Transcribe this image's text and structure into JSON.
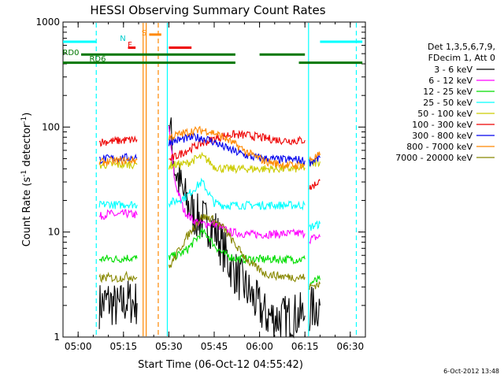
{
  "chart_data": {
    "type": "line",
    "title": "HESSI Observing Summary Count Rates",
    "xlabel": "Start Time (06-Oct-12 04:55:42)",
    "ylabel_main": "Count Rate (s",
    "ylabel_sup1": "-1",
    "ylabel_mid": " detector",
    "ylabel_sup2": "-1",
    "ylabel_end": ")",
    "footer": "6-Oct-2012 13:48",
    "y_scale": "log",
    "ylim": [
      1,
      1000
    ],
    "xlim_minutes": [
      55,
      155
    ],
    "x_ticks": [
      {
        "m": 60,
        "label": "05:00"
      },
      {
        "m": 75,
        "label": "05:15"
      },
      {
        "m": 90,
        "label": "05:30"
      },
      {
        "m": 105,
        "label": "05:45"
      },
      {
        "m": 120,
        "label": "06:00"
      },
      {
        "m": 135,
        "label": "06:15"
      },
      {
        "m": 150,
        "label": "06:30"
      }
    ],
    "y_ticks": [
      {
        "v": 1,
        "label": "1"
      },
      {
        "v": 10,
        "label": "10"
      },
      {
        "v": 100,
        "label": "100"
      },
      {
        "v": 1000,
        "label": "1000"
      }
    ],
    "legend_title_1": "Det 1,3,5,6,7,9,",
    "legend_title_2": "FDecim 1, Att 0",
    "legend_position": "right",
    "x_note": "x values are minutes after 04:00 UT",
    "series": [
      {
        "name": "3 - 6 keV",
        "color": "#000000",
        "segments": [
          {
            "x": [
              67,
              70,
              73,
              76,
              79.5
            ],
            "y": [
              2.0,
              2.2,
              1.9,
              2.2,
              2.1
            ]
          },
          {
            "x": [
              90,
              92,
              95,
              98,
              101,
              105,
              110,
              117,
              122,
              127,
              132,
              135
            ],
            "y": [
              120,
              40,
              22,
              15,
              13,
              11,
              5,
              2.5,
              1.6,
              1.5,
              1.6,
              1.6
            ]
          },
          {
            "x": [
              136.5,
              138,
              140
            ],
            "y": [
              1.8,
              1.9,
              2.0
            ]
          }
        ]
      },
      {
        "name": "6 - 12 keV",
        "color": "#ff00ff",
        "segments": [
          {
            "x": [
              67,
              70,
              73,
              76,
              79.5
            ],
            "y": [
              14,
              15,
              14.5,
              15,
              14.5
            ]
          },
          {
            "x": [
              90,
              92,
              95,
              98,
              101,
              105,
              110,
              117,
              122,
              127,
              132,
              135
            ],
            "y": [
              100,
              30,
              16,
              13,
              12,
              12,
              10,
              9.5,
              9.5,
              9.6,
              9.7,
              9.7
            ]
          },
          {
            "x": [
              136.5,
              138,
              140
            ],
            "y": [
              8.5,
              8.8,
              9.0
            ]
          }
        ]
      },
      {
        "name": "12 - 25 keV",
        "color": "#00dd00",
        "segments": [
          {
            "x": [
              67,
              70,
              73,
              76,
              79.5
            ],
            "y": [
              5.5,
              5.6,
              5.5,
              5.7,
              5.6
            ]
          },
          {
            "x": [
              90,
              93,
              96,
              99,
              101,
              103,
              105,
              108,
              112,
              117,
              122,
              127,
              132,
              135
            ],
            "y": [
              5.8,
              6.0,
              6.8,
              8.5,
              10,
              9.2,
              7.5,
              6.2,
              5.6,
              5.5,
              5.5,
              5.5,
              5.5,
              5.5
            ]
          },
          {
            "x": [
              136.5,
              138,
              140
            ],
            "y": [
              3.2,
              3.4,
              3.5
            ]
          }
        ]
      },
      {
        "name": "25 - 50 keV",
        "color": "#00ffff",
        "segments": [
          {
            "x": [
              67,
              70,
              73,
              76,
              79.5
            ],
            "y": [
              18,
              18.5,
              18,
              18.5,
              18.2
            ]
          },
          {
            "x": [
              90,
              93,
              96,
              99,
              101,
              103,
              105,
              108,
              112,
              117,
              122,
              127,
              132,
              135
            ],
            "y": [
              19,
              20,
              22,
              27,
              30,
              24,
              19,
              18,
              18,
              18,
              18,
              18,
              18,
              18
            ]
          },
          {
            "x": [
              136.5,
              138,
              140
            ],
            "y": [
              11,
              11.5,
              12
            ]
          }
        ]
      },
      {
        "name": "50 - 100 keV",
        "color": "#cccc00",
        "segments": [
          {
            "x": [
              67,
              70,
              73,
              76,
              79.5
            ],
            "y": [
              43,
              44,
              43.5,
              44,
              44
            ]
          },
          {
            "x": [
              90,
              93,
              96,
              99,
              101,
              103,
              105,
              108,
              112,
              117,
              122,
              127,
              132,
              135
            ],
            "y": [
              43,
              44,
              45,
              50,
              52,
              48,
              42,
              40,
              40,
              40,
              40,
              40,
              40,
              41
            ]
          },
          {
            "x": [
              136.5,
              138,
              140
            ],
            "y": [
              43,
              45,
              47
            ]
          }
        ]
      },
      {
        "name": "100 - 300 keV",
        "color": "#ee0000",
        "segments": [
          {
            "x": [
              67,
              70,
              73,
              76,
              79.5
            ],
            "y": [
              72,
              73,
              74,
              75,
              76
            ]
          },
          {
            "x": [
              90,
              92,
              95,
              98,
              101,
              105,
              110,
              117,
              122,
              127,
              132,
              135
            ],
            "y": [
              48,
              52,
              58,
              64,
              70,
              77,
              85,
              83,
              78,
              75,
              74,
              75
            ]
          },
          {
            "x": [
              136.5,
              138,
              140
            ],
            "y": [
              26,
              28,
              31
            ]
          }
        ]
      },
      {
        "name": "300 - 800 keV",
        "color": "#0000ee",
        "segments": [
          {
            "x": [
              67,
              70,
              73,
              76,
              79.5
            ],
            "y": [
              49,
              50,
              50.5,
              51,
              51
            ]
          },
          {
            "x": [
              90,
              93,
              96,
              99,
              102,
              105,
              108,
              112,
              117,
              122,
              127,
              132,
              135
            ],
            "y": [
              72,
              75,
              78,
              80,
              78,
              72,
              65,
              58,
              52,
              50,
              49,
              49,
              48
            ]
          },
          {
            "x": [
              136.5,
              138,
              140
            ],
            "y": [
              46,
              48,
              51
            ]
          }
        ]
      },
      {
        "name": "800 - 7000 keV",
        "color": "#ff8800",
        "segments": [
          {
            "x": [
              67,
              70,
              73,
              76,
              79.5
            ],
            "y": [
              46,
              47,
              47.5,
              48,
              48.5
            ]
          },
          {
            "x": [
              90,
              94,
              98,
              101,
              103,
              105,
              108,
              112,
              117,
              122,
              127,
              132,
              135
            ],
            "y": [
              80,
              86,
              92,
              93,
              92,
              88,
              80,
              68,
              55,
              47,
              44,
              43,
              44
            ]
          },
          {
            "x": [
              136.5,
              138,
              140
            ],
            "y": [
              48,
              51,
              54
            ]
          }
        ]
      },
      {
        "name": "7000 - 20000 keV",
        "color": "#888800",
        "segments": [
          {
            "x": [
              67,
              70,
              73,
              76,
              79.5
            ],
            "y": [
              3.6,
              3.7,
              3.6,
              3.8,
              3.7
            ]
          },
          {
            "x": [
              90,
              93,
              96,
              99,
              101,
              104,
              108,
              112,
              117,
              122,
              127,
              132,
              135
            ],
            "y": [
              4.5,
              6.5,
              9,
              12,
              14,
              13.5,
              11,
              7.5,
              5,
              4,
              3.8,
              3.7,
              3.7
            ]
          },
          {
            "x": [
              136.5,
              138,
              140
            ],
            "y": [
              3.0,
              3.1,
              3.2
            ]
          }
        ]
      }
    ],
    "flag_labels": [
      {
        "text": "N",
        "color": "#00cccc"
      },
      {
        "text": "S",
        "color": "#ff8800"
      },
      {
        "text": "F",
        "color": "#ee0000"
      },
      {
        "text": "RD0",
        "color": "#007700"
      },
      {
        "text": "RD6",
        "color": "#007700"
      }
    ],
    "flag_bars": [
      {
        "color": "#00ffff",
        "y": 650,
        "x": [
          55,
          66
        ]
      },
      {
        "color": "#00ffff",
        "y": 650,
        "x": [
          140,
          154
        ]
      },
      {
        "color": "#ff8800",
        "y": 760,
        "x": [
          83.5,
          87.5
        ]
      },
      {
        "color": "#ee0000",
        "y": 570,
        "x": [
          76.5,
          79
        ]
      },
      {
        "color": "#ee0000",
        "y": 570,
        "x": [
          90,
          97.5
        ]
      },
      {
        "color": "#007700",
        "y": 490,
        "x": [
          61,
          112
        ]
      },
      {
        "color": "#007700",
        "y": 490,
        "x": [
          120,
          135
        ]
      },
      {
        "color": "#007700",
        "y": 410,
        "x": [
          55,
          90
        ]
      },
      {
        "color": "#007700",
        "y": 410,
        "x": [
          90,
          112
        ]
      },
      {
        "color": "#007700",
        "y": 410,
        "x": [
          133,
          154
        ]
      }
    ],
    "vertical_markers": [
      {
        "x": 66,
        "color": "#00ffff",
        "style": "dashed"
      },
      {
        "x": 81.5,
        "color": "#ff8800",
        "style": "solid"
      },
      {
        "x": 82.5,
        "color": "#ff8800",
        "style": "solid"
      },
      {
        "x": 86.5,
        "color": "#ff8800",
        "style": "dashed"
      },
      {
        "x": 89.5,
        "color": "#00ffff",
        "style": "solid"
      },
      {
        "x": 136.2,
        "color": "#00ffff",
        "style": "solid"
      },
      {
        "x": 152,
        "color": "#00ffff",
        "style": "dashed"
      }
    ]
  }
}
